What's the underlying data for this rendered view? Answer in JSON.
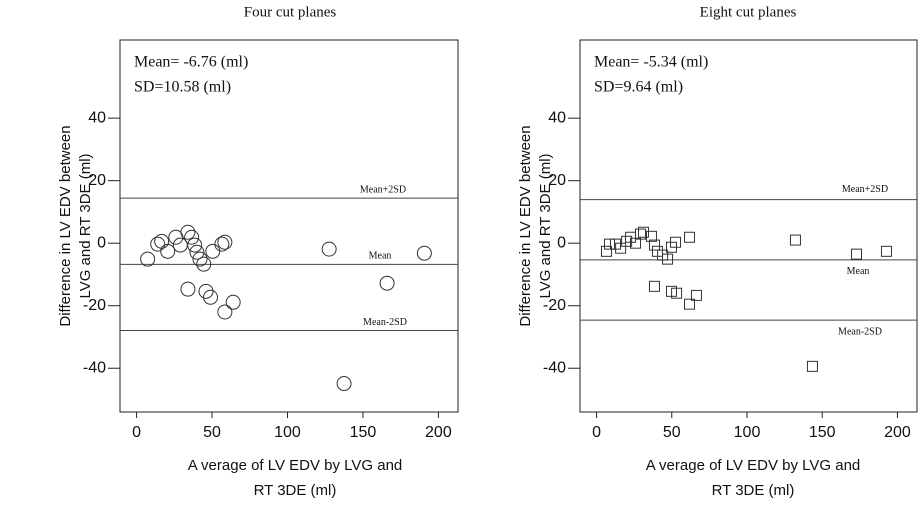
{
  "chart_data": [
    {
      "type": "scatter",
      "title": "Four cut planes",
      "marker": "circle",
      "xlabel": [
        "A verage of LV EDV by LVG and",
        "RT 3DE (ml)"
      ],
      "ylabel": [
        "Difference in LV EDV between",
        "LVG and RT 3DE (ml)"
      ],
      "annotations": [
        "Mean= -6.76 (ml)",
        "SD=10.58 (ml)"
      ],
      "reference_lines": [
        {
          "label": "Mean+2SD",
          "value": 14.4
        },
        {
          "label": "Mean",
          "value": -6.76
        },
        {
          "label": "Mean-2SD",
          "value": -27.92
        }
      ],
      "x": [
        7.3,
        14,
        16.6,
        20.6,
        26,
        29,
        34,
        36.5,
        38.5,
        40,
        42,
        44.5,
        50.5,
        56.5,
        58.5,
        34,
        46,
        49,
        58.5,
        64,
        127.6,
        166,
        190.7,
        137.5
      ],
      "values": [
        -5.1,
        -0.3,
        0.6,
        -2.6,
        1.9,
        -0.6,
        3.5,
        1.9,
        -0.6,
        -2.9,
        -5.1,
        -6.7,
        -2.6,
        -0.3,
        0.3,
        -14.7,
        -15.4,
        -17.3,
        -22,
        -18.9,
        -1.9,
        -12.8,
        -3.2,
        -44.9
      ],
      "xlim": [
        -11,
        213
      ],
      "ylim": [
        -54,
        65
      ],
      "xticks": [
        0,
        50,
        100,
        150,
        200
      ],
      "yticks": [
        -40,
        -20,
        0,
        20,
        40
      ]
    },
    {
      "type": "scatter",
      "title": "Eight  cut planes",
      "marker": "square",
      "xlabel": [
        "A verage of LV EDV by LVG and",
        "RT 3DE (ml)"
      ],
      "ylabel": [
        "Difference in LV EDV between",
        "LVG and RT 3DE (ml)"
      ],
      "annotations": [
        "Mean= -5.34 (ml)",
        "SD=9.64 (ml)"
      ],
      "reference_lines": [
        {
          "label": "Mean+2SD",
          "value": 13.94
        },
        {
          "label": "Mean",
          "value": -5.34
        },
        {
          "label": "Mean-2SD",
          "value": -24.62
        }
      ],
      "x": [
        6.6,
        8.6,
        12.6,
        16,
        20,
        22.6,
        25.9,
        29.2,
        31.2,
        36.5,
        38.5,
        40.5,
        43.9,
        47.2,
        49.8,
        52.5,
        61.8,
        38.5,
        49.8,
        53.2,
        61.8,
        66.4,
        132.2,
        172.8,
        192.7,
        143.5
      ],
      "values": [
        -2.6,
        -0.3,
        -0.3,
        -1.6,
        0.6,
        1.9,
        0,
        2.9,
        3.5,
        2.2,
        -0.6,
        -2.6,
        -3.8,
        -5.1,
        -1.3,
        0.3,
        1.9,
        -13.8,
        -15.4,
        -16,
        -19.5,
        -16.7,
        1,
        -3.5,
        -2.6,
        -39.4
      ],
      "xlim": [
        -11,
        213
      ],
      "ylim": [
        -54,
        65
      ],
      "xticks": [
        0,
        50,
        100,
        150,
        200
      ],
      "yticks": [
        -40,
        -20,
        0,
        20,
        40
      ]
    }
  ]
}
